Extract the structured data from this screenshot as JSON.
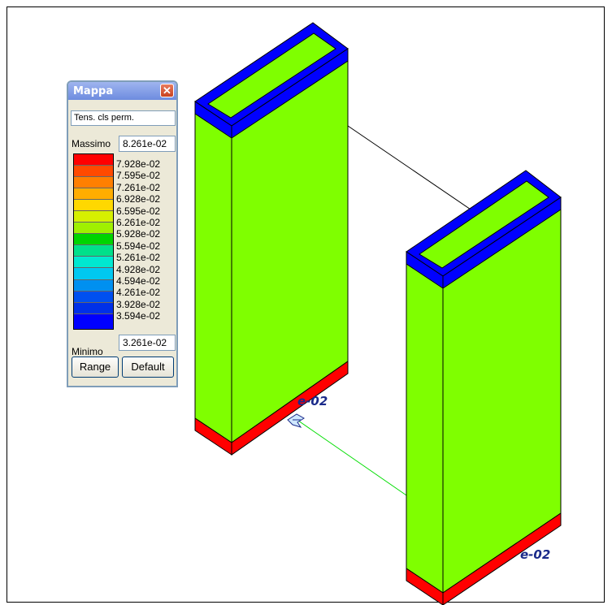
{
  "map_panel": {
    "title": "Mappa",
    "close_glyph": "✕",
    "field": "Tens. cls perm.",
    "max_label": "Massimo",
    "max_value": "8.261e-02",
    "min_label": "Minimo",
    "min_value": "3.261e-02",
    "legend_values": [
      "7.928e-02",
      "7.595e-02",
      "7.261e-02",
      "6.928e-02",
      "6.595e-02",
      "6.261e-02",
      "5.928e-02",
      "5.594e-02",
      "5.261e-02",
      "4.928e-02",
      "4.594e-02",
      "4.261e-02",
      "3.928e-02",
      "3.594e-02"
    ],
    "legend_colors": [
      "#ff0000",
      "#ff4a00",
      "#ff7f00",
      "#ffad00",
      "#ffd800",
      "#d6f000",
      "#a0f000",
      "#00d400",
      "#00e08a",
      "#00e8d0",
      "#00c8f0",
      "#0090f0",
      "#0050f0",
      "#0030e8",
      "#0000ff"
    ],
    "range_label": "Range",
    "default_label": "Default"
  },
  "scene": {
    "label_left": "e-02",
    "label_right": "e-02",
    "colors": {
      "wall_face": "#7fff00",
      "top_cap": "#0000ff",
      "bottom_band": "#ff0000",
      "link_line": "#000000",
      "green_line": "#00dd00"
    }
  }
}
